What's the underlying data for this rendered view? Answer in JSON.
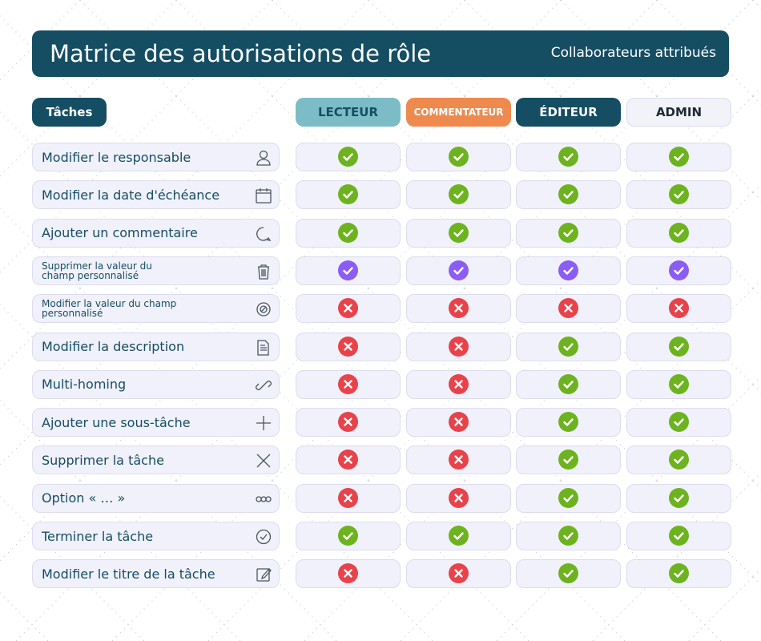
{
  "header": {
    "title": "Matrice des autorisations de rôle",
    "subtitle": "Collaborateurs attribués"
  },
  "colors": {
    "yes": "#6db31f",
    "no": "#e8424a"
  },
  "table": {
    "corner": "Tâches",
    "columns": [
      {
        "label": "LECTEUR",
        "color": "#7bbcc6",
        "text_color": "#154d63"
      },
      {
        "label": "COMMENTATEUR",
        "color": "#ef8a4f",
        "text_color": "#ffffff"
      },
      {
        "label": "ÉDITEUR",
        "color": "#154d63",
        "text_color": "#ffffff"
      },
      {
        "label": "ADMIN",
        "color": "#f2f2f9",
        "text_color": "#1c2a33"
      }
    ],
    "rows": [
      {
        "label": "Modifier le responsable",
        "allowed": [
          true,
          true,
          true,
          true
        ]
      },
      {
        "label": "Modifier la date d'échéance",
        "allowed": [
          true,
          true,
          true,
          true
        ]
      },
      {
        "label": "Ajouter un commentaire",
        "allowed": [
          true,
          true,
          true,
          true
        ]
      },
      {
        "label": "Supprimer la valeur du champ personnalisé",
        "allowed": [
          true,
          true,
          true,
          true
        ],
        "yes_color": "#8b5cf6"
      },
      {
        "label": "Modifier la valeur du champ personnalisé",
        "allowed": [
          false,
          false,
          false,
          false
        ]
      },
      {
        "label": "Modifier la description",
        "allowed": [
          false,
          false,
          true,
          true
        ]
      },
      {
        "label": "Multi-homing",
        "allowed": [
          false,
          false,
          true,
          true
        ]
      },
      {
        "label": "Ajouter une sous-tâche",
        "allowed": [
          false,
          false,
          true,
          true
        ]
      },
      {
        "label": "Supprimer la tâche",
        "allowed": [
          false,
          false,
          true,
          true
        ]
      },
      {
        "label": "Option « … »",
        "allowed": [
          false,
          false,
          true,
          true
        ]
      },
      {
        "label": "Terminer la tâche",
        "allowed": [
          true,
          true,
          true,
          true
        ]
      },
      {
        "label": "Modifier le titre de la tâche",
        "allowed": [
          false,
          false,
          true,
          true
        ]
      }
    ]
  }
}
